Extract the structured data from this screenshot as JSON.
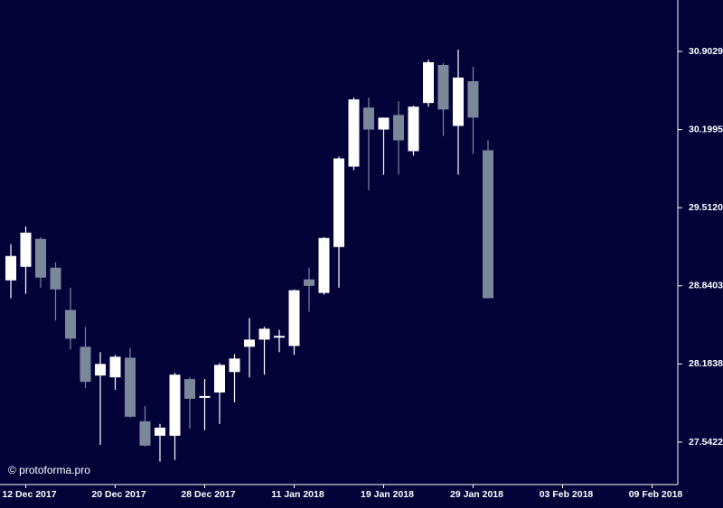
{
  "chart_data": {
    "type": "candlestick",
    "watermark": "© protoforma.pro",
    "log_scale": true,
    "up_color": "#ffffff",
    "down_color": "#7a8899",
    "background": "#03033a",
    "categories": [
      null,
      "12 Dec 2017",
      null,
      null,
      null,
      null,
      null,
      "20 Dec 2017",
      null,
      null,
      null,
      null,
      null,
      "28 Dec 2017",
      null,
      null,
      null,
      null,
      null,
      "11 Jan 2018",
      null,
      null,
      null,
      null,
      null,
      "19 Jan 2018",
      null,
      null,
      null,
      null,
      null,
      "29 Jan 2018",
      null,
      null,
      null,
      null,
      null,
      "03 Feb 2018",
      null,
      null,
      null,
      null,
      null,
      "09 Feb 2018",
      null
    ],
    "open": [
      28.887,
      29.002,
      29.242,
      28.995,
      28.636,
      28.327,
      28.088,
      28.073,
      28.236,
      27.712,
      27.594,
      27.594,
      28.059,
      27.904,
      27.948,
      28.117,
      28.327,
      28.387,
      28.403,
      28.334,
      28.895,
      28.78,
      29.172,
      29.872,
      30.396,
      30.2,
      30.33,
      30.008,
      30.437,
      30.78,
      30.232,
      30.633,
      30.016,
      null,
      null,
      null,
      null,
      null,
      null,
      null,
      null,
      null,
      null,
      null,
      null
    ],
    "high": [
      29.196,
      29.35,
      29.257,
      29.041,
      28.825,
      28.493,
      28.282,
      28.259,
      28.319,
      27.837,
      27.69,
      28.11,
      28.073,
      28.059,
      28.191,
      28.266,
      28.568,
      28.493,
      28.47,
      28.81,
      28.995,
      29.257,
      29.96,
      30.486,
      30.486,
      30.306,
      30.453,
      30.412,
      30.829,
      30.797,
      30.919,
      30.764,
      30.104,
      null,
      null,
      null,
      null,
      null,
      null,
      null,
      null,
      null,
      null,
      null,
      null
    ],
    "low": [
      28.735,
      28.772,
      28.825,
      28.546,
      28.304,
      27.985,
      27.52,
      27.97,
      27.742,
      27.506,
      27.384,
      27.398,
      27.653,
      27.639,
      27.69,
      27.867,
      28.073,
      28.095,
      28.282,
      28.259,
      28.621,
      28.765,
      28.825,
      29.84,
      29.664,
      29.8,
      29.8,
      29.968,
      30.404,
      30.144,
      29.8,
      29.984,
      28.735,
      null,
      null,
      null,
      null,
      null,
      null,
      null,
      null,
      null,
      null,
      null,
      null
    ],
    "close": [
      29.095,
      29.296,
      28.91,
      28.81,
      28.395,
      28.036,
      28.184,
      28.244,
      27.749,
      27.514,
      27.66,
      28.095,
      27.896,
      27.919,
      28.176,
      28.229,
      28.387,
      28.478,
      28.418,
      28.803,
      28.84,
      29.25,
      29.944,
      30.469,
      30.2,
      30.306,
      30.104,
      30.404,
      30.805,
      30.379,
      30.666,
      30.306,
      28.735,
      null,
      null,
      null,
      null,
      null,
      null,
      null,
      null,
      null,
      null,
      null,
      null
    ],
    "ylim": [
      27.2,
      31.375
    ],
    "yticks": [
      27.5422,
      28.1838,
      {
        "value": 28.8403,
        "label": "28.8403"
      },
      {
        "value": 29.512,
        "label": "29.5120"
      },
      30.1995,
      30.9029
    ]
  }
}
